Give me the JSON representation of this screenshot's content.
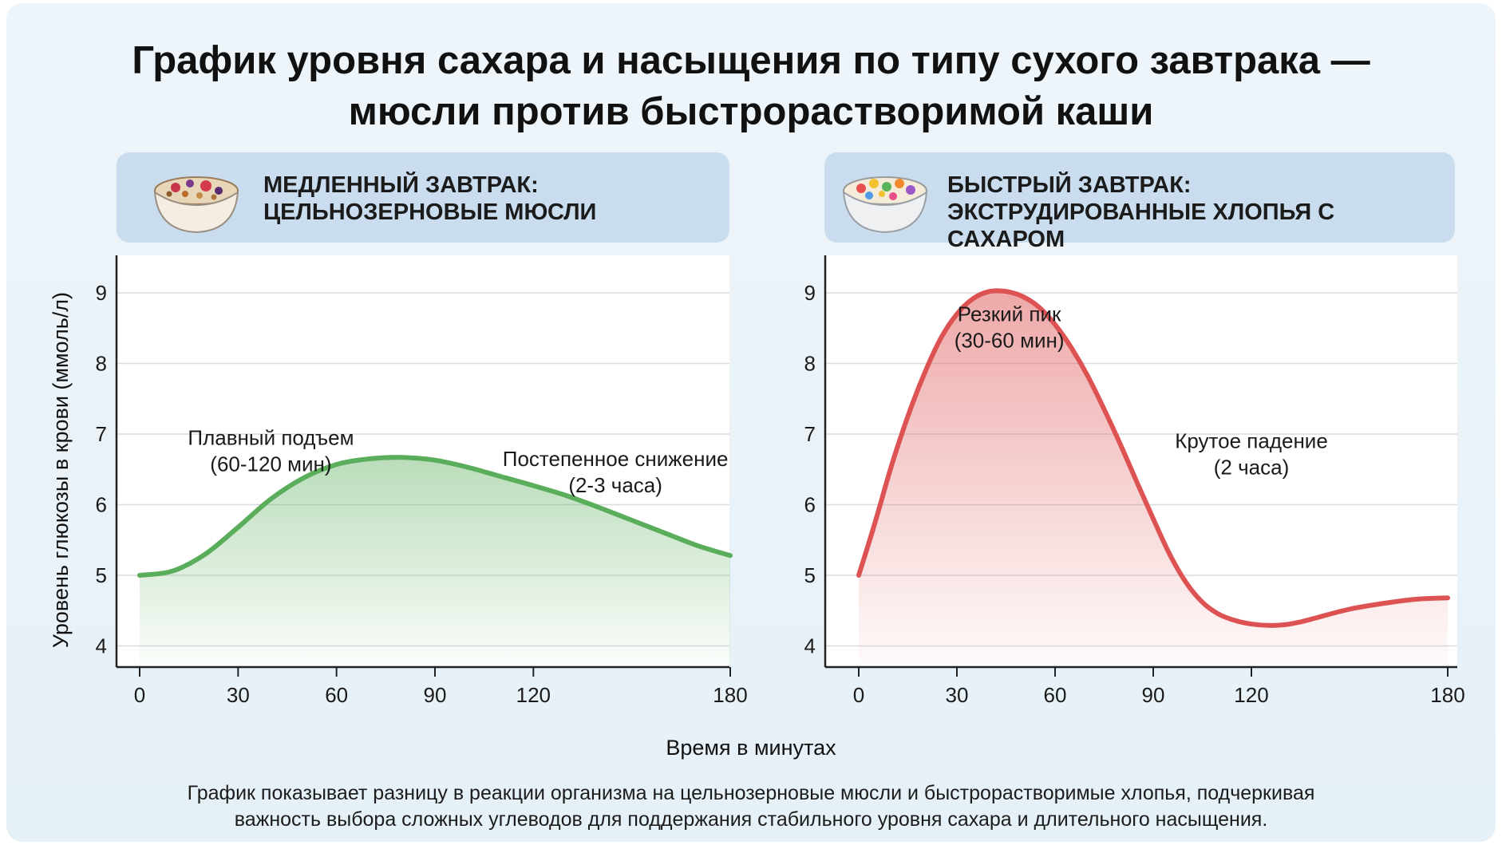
{
  "title": {
    "line1": "График уровня сахара и насыщения по типу сухого завтрака —",
    "line2": "мюсли против быстрорастворимой каши"
  },
  "y_axis_label": "Уровень глюкозы в крови (ммоль/л)",
  "x_axis_label": "Время в минутах",
  "caption": {
    "line1": "График показывает разницу в реакции организма на цельнозерновые мюсли и быстрорастворимые хлопья, подчеркивая",
    "line2": "важность выбора сложных углеводов для поддержания стабильного уровня сахара и длительного насыщения."
  },
  "panels": [
    {
      "header_line1": "МЕДЛЕННЫЙ ЗАВТРАК:",
      "header_line2": "ЦЕЛЬНОЗЕРНОВЫЕ МЮСЛИ",
      "icon": "muesli-bowl-icon"
    },
    {
      "header_line1": "БЫСТРЫЙ ЗАВТРАК:",
      "header_line2": "ЭКСТРУДИРОВАННЫЕ ХЛОПЬЯ С САХАРОМ",
      "icon": "cereal-bowl-icon"
    }
  ],
  "chart_data": [
    {
      "type": "area",
      "x_ticks": [
        0,
        30,
        60,
        90,
        120,
        180
      ],
      "y_ticks": [
        4,
        5,
        6,
        7,
        8,
        9
      ],
      "xlim": [
        0,
        180
      ],
      "ylim": [
        3.5,
        9.5
      ],
      "grid": true,
      "color": "#5aad5a",
      "series": [
        {
          "x": [
            0,
            10,
            20,
            30,
            40,
            50,
            60,
            70,
            80,
            90,
            100,
            110,
            120,
            130,
            140,
            150,
            160,
            170,
            180
          ],
          "values": [
            5.0,
            5.06,
            5.3,
            5.68,
            6.08,
            6.38,
            6.57,
            6.65,
            6.67,
            6.63,
            6.53,
            6.4,
            6.27,
            6.13,
            5.96,
            5.78,
            5.6,
            5.42,
            5.28
          ]
        }
      ],
      "annotations": [
        {
          "line1": "Плавный подъем",
          "line2": "(60-120 мин)",
          "x": 40,
          "y": 6.85
        },
        {
          "line1": "Постепенное снижение",
          "line2": "(2-3 часа)",
          "x": 145,
          "y": 6.55
        }
      ]
    },
    {
      "type": "area",
      "x_ticks": [
        0,
        30,
        60,
        90,
        120,
        180
      ],
      "y_ticks": [
        4,
        5,
        6,
        7,
        8,
        9
      ],
      "xlim": [
        0,
        180
      ],
      "ylim": [
        3.5,
        9.5
      ],
      "grid": true,
      "color": "#dd5252",
      "series": [
        {
          "x": [
            0,
            5,
            10,
            15,
            20,
            25,
            30,
            35,
            40,
            45,
            50,
            55,
            60,
            65,
            70,
            75,
            80,
            85,
            90,
            95,
            100,
            105,
            110,
            115,
            120,
            125,
            130,
            135,
            140,
            150,
            160,
            170,
            180
          ],
          "values": [
            5.0,
            5.75,
            6.55,
            7.25,
            7.85,
            8.35,
            8.7,
            8.92,
            9.02,
            9.02,
            8.95,
            8.8,
            8.55,
            8.22,
            7.82,
            7.35,
            6.85,
            6.32,
            5.8,
            5.3,
            4.9,
            4.62,
            4.45,
            4.36,
            4.31,
            4.29,
            4.3,
            4.34,
            4.4,
            4.52,
            4.6,
            4.66,
            4.68
          ]
        }
      ],
      "annotations": [
        {
          "line1": "Резкий пик",
          "line2": "(30-60 мин)",
          "x": 46,
          "y": 8.6
        },
        {
          "line1": "Крутое падение",
          "line2": "(2 часа)",
          "x": 120,
          "y": 6.8
        }
      ]
    }
  ]
}
